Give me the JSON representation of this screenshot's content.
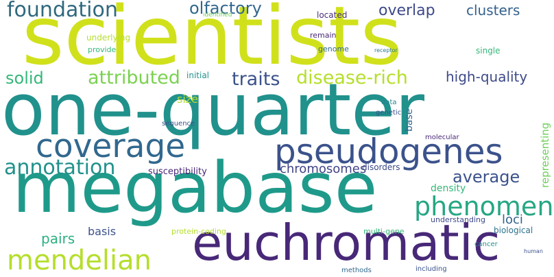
{
  "word_cloud": {
    "words": [
      {
        "text": "scientists",
        "color": "#d0e11c"
      },
      {
        "text": "one-quarter",
        "color": "#21918c"
      },
      {
        "text": "megabase",
        "color": "#1f9a8a"
      },
      {
        "text": "euchromatic",
        "color": "#482878"
      },
      {
        "text": "pseudogenes",
        "color": "#3b528b"
      },
      {
        "text": "coverage",
        "color": "#31688e"
      },
      {
        "text": "phenomena",
        "color": "#26a784"
      },
      {
        "text": "mendelian",
        "color": "#b5de2b"
      },
      {
        "text": "foundation",
        "color": "#30697e"
      },
      {
        "text": "annotation",
        "color": "#21918c"
      },
      {
        "text": "attributed",
        "color": "#7ad151"
      },
      {
        "text": "disease-rich",
        "color": "#b5de2b"
      },
      {
        "text": "olfactory",
        "color": "#31688e"
      },
      {
        "text": "overlap",
        "color": "#3e4989"
      },
      {
        "text": "clusters",
        "color": "#34618d"
      },
      {
        "text": "traits",
        "color": "#3b528b"
      },
      {
        "text": "solid",
        "color": "#35b779"
      },
      {
        "text": "high-quality",
        "color": "#3e4a89"
      },
      {
        "text": "average",
        "color": "#3b528b"
      },
      {
        "text": "chromosomes",
        "color": "#414487"
      },
      {
        "text": "pairs",
        "color": "#2ab07f"
      },
      {
        "text": "loci",
        "color": "#33638d"
      },
      {
        "text": "basis",
        "color": "#3b528b"
      },
      {
        "text": "size",
        "color": "#b5de2b"
      },
      {
        "text": "density",
        "color": "#35b779"
      },
      {
        "text": "representing",
        "color": "#6ece58"
      },
      {
        "text": "susceptibility",
        "color": "#482878"
      },
      {
        "text": "disorders",
        "color": "#3e4989"
      },
      {
        "text": "base",
        "color": "#31688e"
      },
      {
        "text": "initial",
        "color": "#21918c"
      },
      {
        "text": "underlying",
        "color": "#b5de2b"
      },
      {
        "text": "located",
        "color": "#472d7b"
      },
      {
        "text": "remain",
        "color": "#482878"
      },
      {
        "text": "genome",
        "color": "#31688e"
      },
      {
        "text": "provide",
        "color": "#35b779"
      },
      {
        "text": "single",
        "color": "#35b779"
      },
      {
        "text": "understanding",
        "color": "#3e4989"
      },
      {
        "text": "biological",
        "color": "#2c728e"
      },
      {
        "text": "protein-coding",
        "color": "#b5de2b"
      },
      {
        "text": "multi-gene",
        "color": "#35b779"
      },
      {
        "text": "molecular",
        "color": "#482878"
      },
      {
        "text": "sequence",
        "color": "#3b528b"
      },
      {
        "text": "genetic",
        "color": "#3b528b"
      },
      {
        "text": "data",
        "color": "#26828e"
      },
      {
        "text": "identified",
        "color": "#6ece58"
      },
      {
        "text": "receptor",
        "color": "#2a788e"
      },
      {
        "text": "cancer",
        "color": "#21918c"
      },
      {
        "text": "human",
        "color": "#3b528b"
      },
      {
        "text": "methods",
        "color": "#31688e"
      },
      {
        "text": "including",
        "color": "#3b528b"
      }
    ]
  }
}
